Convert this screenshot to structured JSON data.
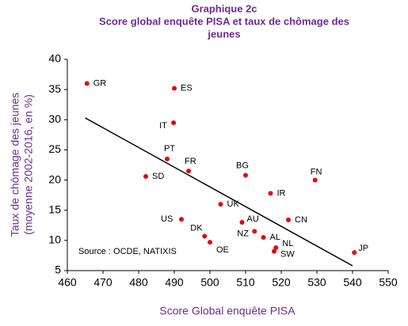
{
  "chart_data": {
    "type": "scatter",
    "title": "Graphique 2c",
    "subtitle": [
      "Score global enquête PISA et taux de chômage des",
      "jeunes"
    ],
    "xlabel": "Score Global enquête PISA",
    "ylabel": [
      "Taux de chômage des jeunes",
      "(moyenne 2002-2016, en %)"
    ],
    "annotation": "Source : OCDE, NATIXIS",
    "xlim": [
      460,
      550
    ],
    "xticks": [
      460,
      470,
      480,
      490,
      500,
      510,
      520,
      530,
      540,
      550
    ],
    "ylim": [
      5,
      40
    ],
    "yticks": [
      5,
      10,
      15,
      20,
      25,
      30,
      35,
      40
    ],
    "series": [
      {
        "color": "#e30613",
        "labels": [
          "GR",
          "ES",
          "IT",
          "PT",
          "FR",
          "SD",
          "BG",
          "IR",
          "FN",
          "UK",
          "US",
          "AU",
          "CN",
          "NZ",
          "AL",
          "DK",
          "OE",
          "NL",
          "SW",
          "JP"
        ],
        "x": [
          465.5,
          490,
          489.8,
          488,
          494,
          482,
          510,
          517,
          529.5,
          503,
          492,
          509,
          522,
          512.5,
          515,
          498.5,
          500,
          518.5,
          518,
          540.5
        ],
        "y": [
          36,
          35.2,
          29.5,
          23.5,
          21.5,
          20.6,
          20.8,
          17.8,
          20,
          16,
          13.5,
          13,
          13.4,
          11.5,
          10.5,
          10.7,
          9.7,
          8.8,
          8.2,
          8
        ]
      }
    ],
    "trendline": {
      "color": "#000000",
      "x": [
        465,
        540
      ],
      "y": [
        30.3,
        5.8
      ]
    }
  }
}
